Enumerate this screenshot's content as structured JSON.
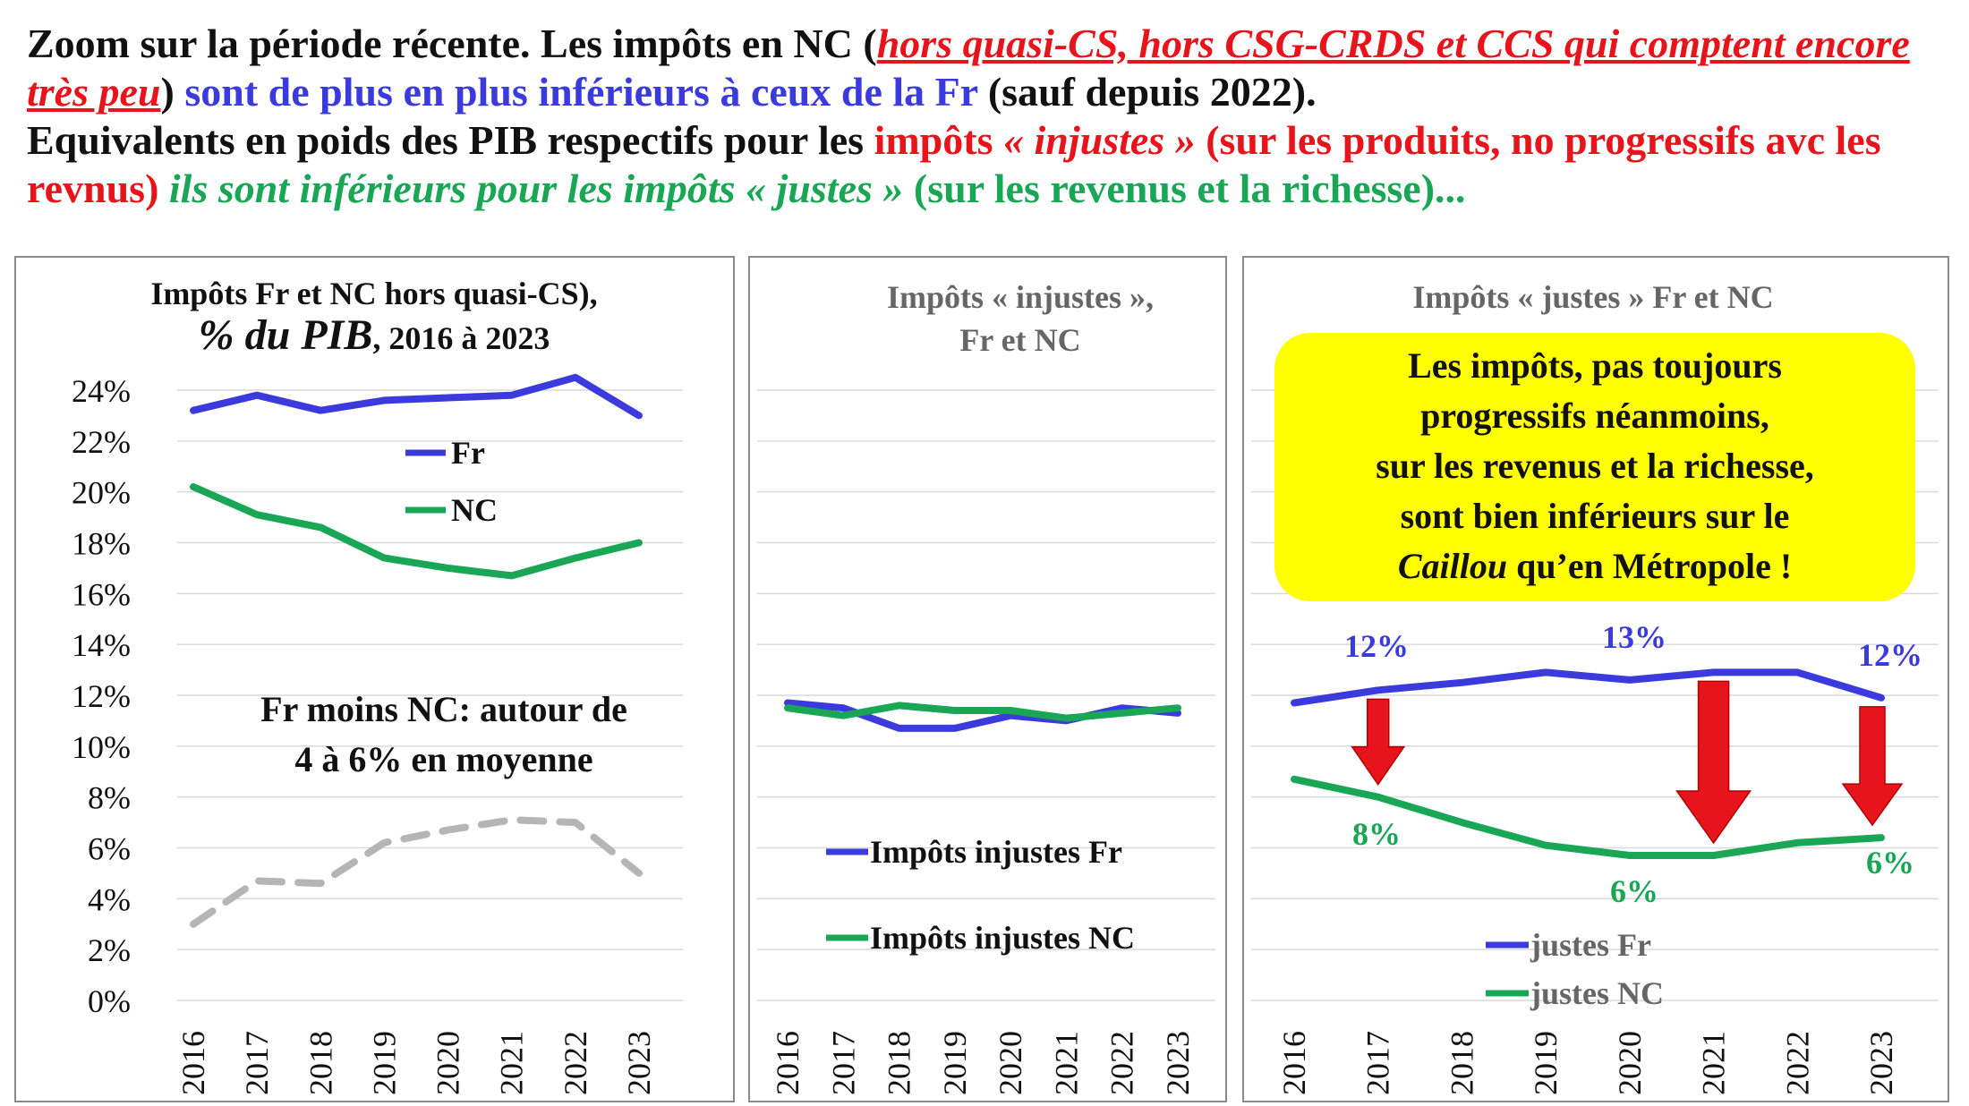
{
  "header": {
    "s1": "Zoom sur la période récente. Les impôts en NC (",
    "s2": "hors quasi-CS, hors CSG-CRDS et CCS qui comptent encore très peu",
    "s3": ")",
    "s4": " sont de plus en plus inférieurs à ceux de la Fr",
    "s5": " (sauf depuis 2022).",
    "s6": "Equivalents en poids des PIB respectifs pour les ",
    "s7": "impôts",
    "s8": " « injustes »",
    "s9": " (sur les produits, no progressifs avc les revnus)",
    "s10": " ils sont inférieurs pour les impôts «  justes »",
    "s11": " (sur les revenus et la richesse)..."
  },
  "colors": {
    "fr": "#3b3bdd",
    "nc": "#19a655",
    "diff": "#b5b5b5",
    "arrow": "#e8141c",
    "callout": "#ffff00",
    "grid": "#d9d9d9"
  },
  "chart_data": [
    {
      "type": "line",
      "title_line1": "Impôts Fr et NC hors quasi-CS),",
      "title_line2a": "% du PIB",
      "title_line2b": ", 2016 à 2023",
      "categories": [
        "2016",
        "2017",
        "2018",
        "2019",
        "2020",
        "2021",
        "2022",
        "2023"
      ],
      "ylim": [
        0,
        24
      ],
      "ytick_labels": [
        "0%",
        "2%",
        "4%",
        "6%",
        "8%",
        "10%",
        "12%",
        "14%",
        "16%",
        "18%",
        "20%",
        "22%",
        "24%"
      ],
      "series": [
        {
          "name": "Fr",
          "values": [
            23.2,
            23.8,
            23.2,
            23.6,
            23.7,
            23.8,
            24.5,
            23.0
          ]
        },
        {
          "name": "NC",
          "values": [
            20.2,
            19.1,
            18.6,
            17.4,
            17.0,
            16.7,
            17.4,
            18.0
          ]
        },
        {
          "values": [
            3.0,
            4.7,
            4.6,
            6.2,
            6.7,
            7.1,
            7.0,
            5.0
          ]
        }
      ],
      "annotations": [
        "Fr moins NC: autour de",
        "4 à 6% en moyenne"
      ]
    },
    {
      "type": "line",
      "title_line1": "Impôts « injustes »,",
      "title_line2": "Fr et NC",
      "categories": [
        "2016",
        "2017",
        "2018",
        "2019",
        "2020",
        "2021",
        "2022",
        "2023"
      ],
      "ylim": [
        0,
        24
      ],
      "series": [
        {
          "name": "Impôts injustes Fr",
          "values": [
            11.7,
            11.5,
            10.7,
            10.7,
            11.2,
            11.0,
            11.5,
            11.3
          ]
        },
        {
          "name": "Impôts injustes NC",
          "values": [
            11.5,
            11.2,
            11.6,
            11.4,
            11.4,
            11.1,
            11.3,
            11.5
          ]
        }
      ]
    },
    {
      "type": "line",
      "title": "Impôts « justes » Fr et NC",
      "categories": [
        "2016",
        "2017",
        "2018",
        "2019",
        "2020",
        "2021",
        "2022",
        "2023"
      ],
      "ylim": [
        0,
        24
      ],
      "series": [
        {
          "name": "justes Fr",
          "values": [
            11.7,
            12.2,
            12.5,
            12.9,
            12.6,
            12.9,
            12.9,
            11.9
          ]
        },
        {
          "name": "justes NC",
          "values": [
            8.7,
            8.0,
            7.0,
            6.1,
            5.7,
            5.7,
            6.2,
            6.4
          ]
        }
      ],
      "data_labels": {
        "fr": [
          "12%",
          "13%",
          "12%"
        ],
        "nc": [
          "8%",
          "6%",
          "6%"
        ]
      },
      "callout": [
        "Les impôts, pas toujours",
        "progressifs néanmoins,",
        "sur les revenus et la richesse,",
        "sont bien inférieurs sur le",
        "Caillou",
        " qu’en Métropole !"
      ]
    }
  ]
}
